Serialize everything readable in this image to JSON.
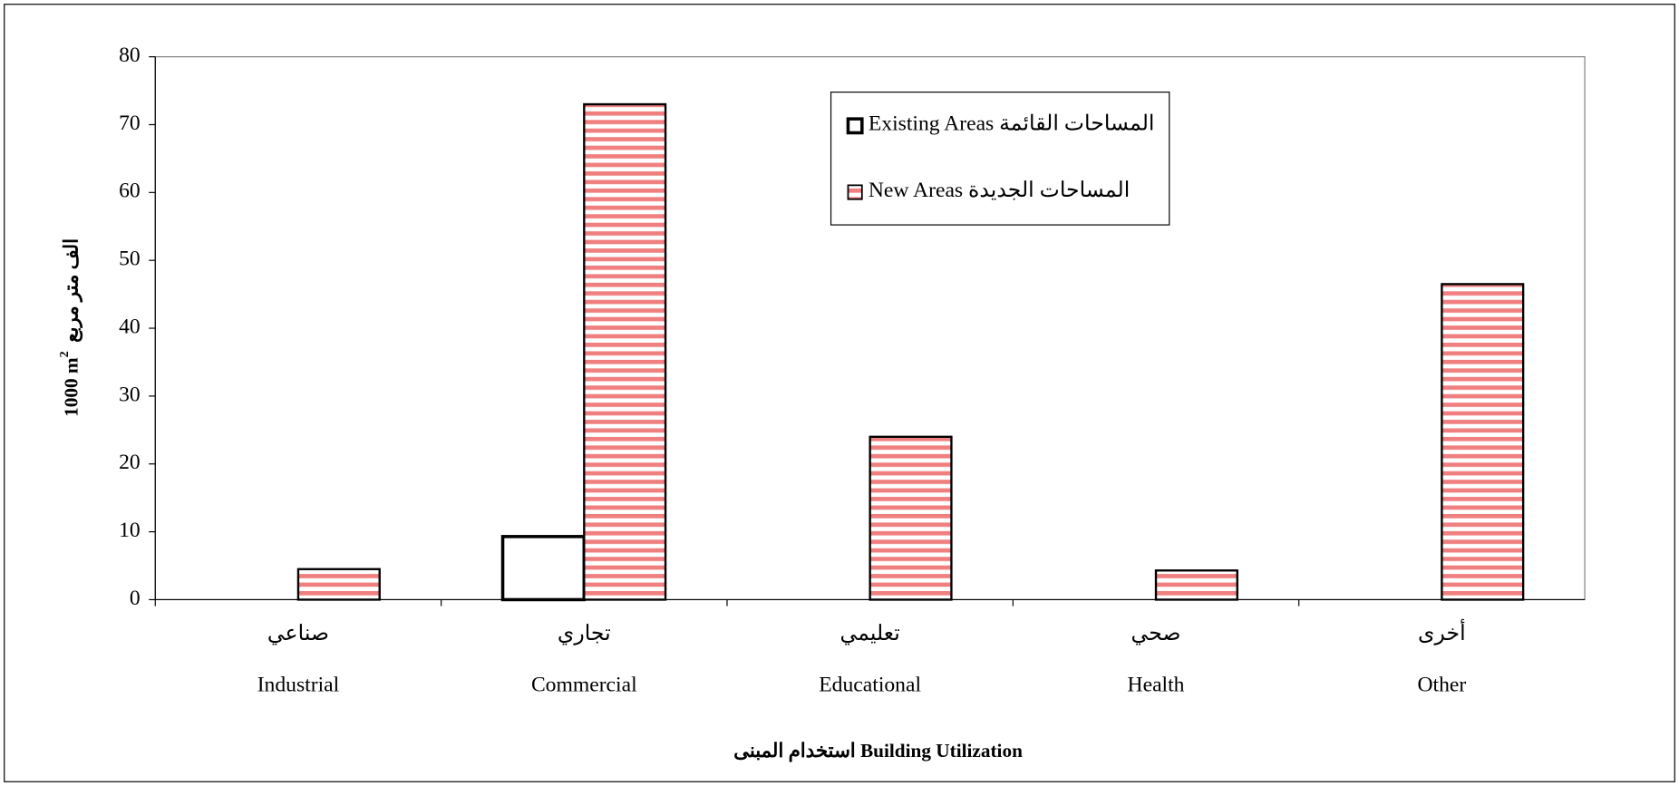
{
  "chart_data": {
    "type": "bar",
    "xlabel": "استخدام المبنى Building Utilization",
    "ylabel": "1000 m",
    "ylabel_sup": "2",
    "ylabel_ar": "الف متر مربع",
    "categories": [
      "Industrial",
      "Commercial",
      "Educational",
      "Health",
      "Other"
    ],
    "categories_ar": [
      "صناعي",
      "تجاري",
      "تعليمي",
      "صحي",
      "أخرى"
    ],
    "series": [
      {
        "name": "Existing Areas المساحات  القائمة",
        "color": "#ffffff",
        "values": [
          null,
          9.3,
          null,
          null,
          null
        ]
      },
      {
        "name": "New Areas المساحات  الجديدة",
        "color": "#f08080",
        "values": [
          4.5,
          73,
          24,
          4.3,
          46.5
        ]
      }
    ],
    "ylim": [
      0,
      80
    ],
    "yticks": [
      0,
      10,
      20,
      30,
      40,
      50,
      60,
      70,
      80
    ],
    "grid": false
  }
}
